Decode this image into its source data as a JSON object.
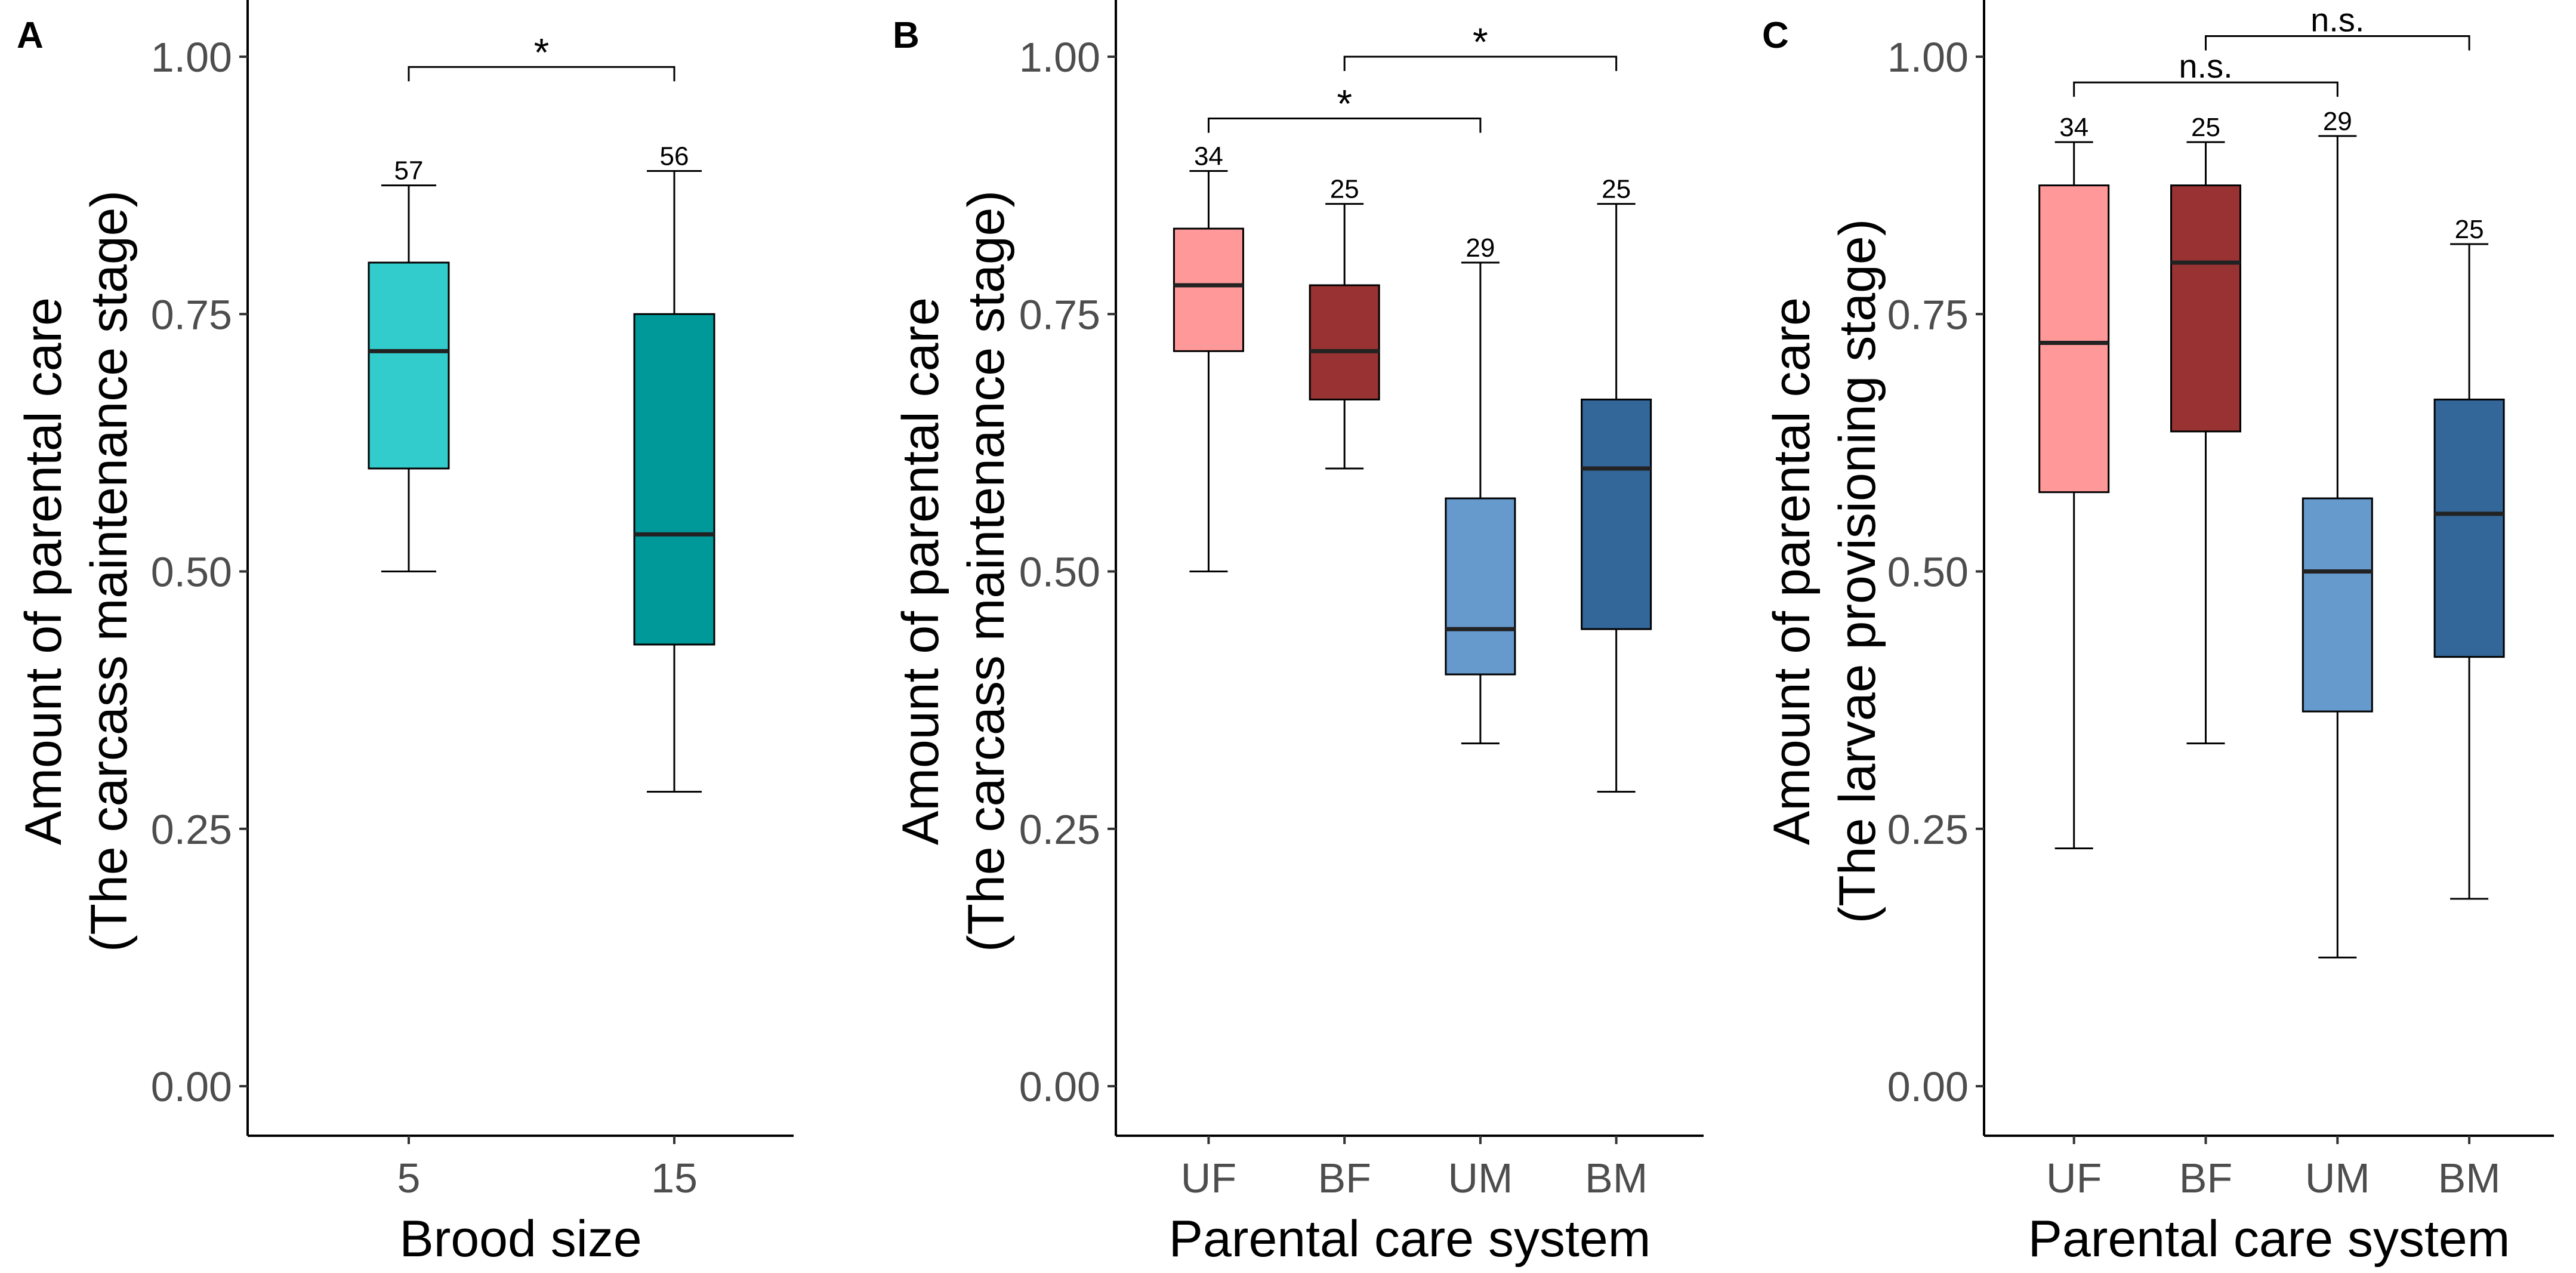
{
  "chart_data": [
    {
      "panel": "A",
      "type": "box",
      "xlabel": "Brood size",
      "ylabel_lines": [
        "Amount of parental care",
        "(The carcass maintenance stage)"
      ],
      "ylim": [
        0,
        1
      ],
      "yticks": [
        "0.00",
        "0.25",
        "0.50",
        "0.75",
        "1.00"
      ],
      "boxes": [
        {
          "category": "5",
          "n": "57",
          "min": 0.5,
          "q1": 0.6,
          "median": 0.714,
          "q3": 0.8,
          "max": 0.875,
          "color": "#33cccc"
        },
        {
          "category": "15",
          "n": "56",
          "min": 0.286,
          "q1": 0.429,
          "median": 0.536,
          "q3": 0.75,
          "max": 0.889,
          "color": "#009999"
        }
      ],
      "comparisons": [
        {
          "from": 0,
          "to": 1,
          "y": 0.99,
          "label": "*"
        }
      ]
    },
    {
      "panel": "B",
      "type": "box",
      "xlabel": "Parental care system",
      "ylabel_lines": [
        "Amount of parental care",
        "(The carcass maintenance stage)"
      ],
      "ylim": [
        0,
        1
      ],
      "yticks": [
        "0.00",
        "0.25",
        "0.50",
        "0.75",
        "1.00"
      ],
      "boxes": [
        {
          "category": "UF",
          "n": "34",
          "min": 0.5,
          "q1": 0.714,
          "median": 0.778,
          "q3": 0.833,
          "max": 0.889,
          "color": "#ff9999"
        },
        {
          "category": "BF",
          "n": "25",
          "min": 0.6,
          "q1": 0.667,
          "median": 0.714,
          "q3": 0.778,
          "max": 0.857,
          "color": "#993333"
        },
        {
          "category": "UM",
          "n": "29",
          "min": 0.333,
          "q1": 0.4,
          "median": 0.444,
          "q3": 0.571,
          "max": 0.8,
          "color": "#6699cc"
        },
        {
          "category": "BM",
          "n": "25",
          "min": 0.286,
          "q1": 0.444,
          "median": 0.6,
          "q3": 0.667,
          "max": 0.857,
          "color": "#336699"
        }
      ],
      "comparisons": [
        {
          "from": 0,
          "to": 2,
          "y": 0.94,
          "label": "*"
        },
        {
          "from": 1,
          "to": 3,
          "y": 1.0,
          "label": "*"
        }
      ]
    },
    {
      "panel": "C",
      "type": "box",
      "xlabel": "Parental care system",
      "ylabel_lines": [
        "Amount of parental care",
        "(The larvae provisioning stage)"
      ],
      "ylim": [
        0,
        1
      ],
      "yticks": [
        "0.00",
        "0.25",
        "0.50",
        "0.75",
        "1.00"
      ],
      "boxes": [
        {
          "category": "UF",
          "n": "34",
          "min": 0.231,
          "q1": 0.577,
          "median": 0.722,
          "q3": 0.875,
          "max": 0.917,
          "color": "#ff9999"
        },
        {
          "category": "BF",
          "n": "25",
          "min": 0.333,
          "q1": 0.636,
          "median": 0.8,
          "q3": 0.875,
          "max": 0.917,
          "color": "#993333"
        },
        {
          "category": "UM",
          "n": "29",
          "min": 0.125,
          "q1": 0.364,
          "median": 0.5,
          "q3": 0.571,
          "max": 0.923,
          "color": "#6699cc"
        },
        {
          "category": "BM",
          "n": "25",
          "min": 0.182,
          "q1": 0.417,
          "median": 0.556,
          "q3": 0.667,
          "max": 0.818,
          "color": "#336699"
        }
      ],
      "comparisons": [
        {
          "from": 0,
          "to": 2,
          "y": 0.975,
          "label": "n.s."
        },
        {
          "from": 1,
          "to": 3,
          "y": 1.02,
          "label": "n.s."
        }
      ]
    }
  ]
}
